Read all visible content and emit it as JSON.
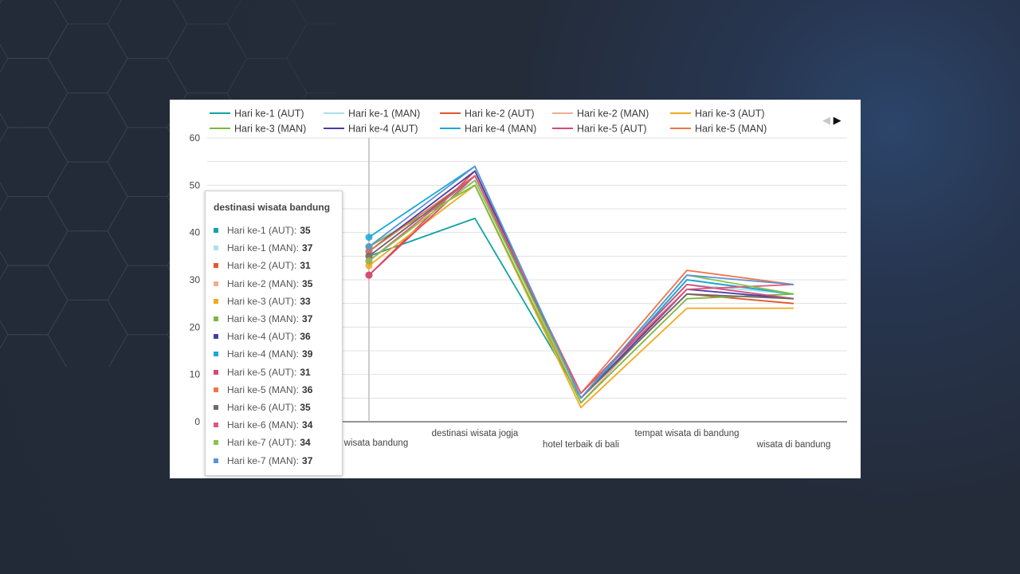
{
  "chart_data": {
    "type": "line",
    "categories": [
      "destinasi wisata bandung",
      "destinasi wisata jogja",
      "hotel terbaik di bali",
      "tempat wisata di bandung",
      "wisata di bandung"
    ],
    "category_labels_shown": [
      "asi wisata bandung",
      "destinasi wisata jogja",
      "hotel terbaik di bali",
      "tempat wisata di bandung",
      "wisata di bandung"
    ],
    "ylim": [
      0,
      60
    ],
    "yticks": [
      "60",
      "50",
      "40",
      "30",
      "20",
      "10",
      "0"
    ],
    "series": [
      {
        "name": "Hari ke-1 (AUT)",
        "color": "#12a3a3",
        "values": [
          35,
          43,
          5,
          30,
          27
        ]
      },
      {
        "name": "Hari ke-1 (MAN)",
        "color": "#a9e1ea",
        "values": [
          37,
          51,
          5,
          29,
          27
        ]
      },
      {
        "name": "Hari ke-2 (AUT)",
        "color": "#e4552c",
        "values": [
          31,
          53,
          5,
          27,
          25
        ]
      },
      {
        "name": "Hari ke-2 (MAN)",
        "color": "#f0ad93",
        "values": [
          35,
          52,
          4,
          28,
          26
        ]
      },
      {
        "name": "Hari ke-3 (AUT)",
        "color": "#f1a91b",
        "values": [
          33,
          50,
          3,
          24,
          24
        ]
      },
      {
        "name": "Hari ke-3 (MAN)",
        "color": "#7cb642",
        "values": [
          37,
          50,
          4,
          26,
          27
        ]
      },
      {
        "name": "Hari ke-4 (AUT)",
        "color": "#473ea6",
        "values": [
          36,
          53,
          5,
          28,
          26
        ]
      },
      {
        "name": "Hari ke-4 (MAN)",
        "color": "#18a9d6",
        "values": [
          39,
          54,
          5,
          30,
          27
        ]
      },
      {
        "name": "Hari ke-5 (AUT)",
        "color": "#d6487a",
        "values": [
          31,
          52,
          6,
          29,
          26
        ]
      },
      {
        "name": "Hari ke-5 (MAN)",
        "color": "#ef7649",
        "values": [
          36,
          52,
          6,
          32,
          29
        ]
      },
      {
        "name": "Hari ke-6 (AUT)",
        "color": "#6b6b6b",
        "values": [
          35,
          52,
          5,
          27,
          26
        ]
      },
      {
        "name": "Hari ke-6 (MAN)",
        "color": "#e0587a",
        "values": [
          34,
          52,
          6,
          28,
          29
        ]
      },
      {
        "name": "Hari ke-7 (AUT)",
        "color": "#8bc24a",
        "values": [
          34,
          51,
          5,
          31,
          27
        ]
      },
      {
        "name": "Hari ke-7 (MAN)",
        "color": "#5b93d6",
        "values": [
          37,
          54,
          5,
          31,
          29
        ]
      }
    ],
    "legend_visible_count": 10,
    "tooltip": {
      "title": "destinasi wisata bandung",
      "rows": [
        {
          "label": "Hari ke-1 (AUT):",
          "value": "35"
        },
        {
          "label": "Hari ke-1 (MAN):",
          "value": "37"
        },
        {
          "label": "Hari ke-2 (AUT):",
          "value": "31"
        },
        {
          "label": "Hari ke-2 (MAN):",
          "value": "35"
        },
        {
          "label": "Hari ke-3 (AUT):",
          "value": "33"
        },
        {
          "label": "Hari ke-3 (MAN):",
          "value": "37"
        },
        {
          "label": "Hari ke-4 (AUT):",
          "value": "36"
        },
        {
          "label": "Hari ke-4 (MAN):",
          "value": "39"
        },
        {
          "label": "Hari ke-5 (AUT):",
          "value": "31"
        },
        {
          "label": "Hari ke-5 (MAN):",
          "value": "36"
        },
        {
          "label": "Hari ke-6 (AUT):",
          "value": "35"
        },
        {
          "label": "Hari ke-6 (MAN):",
          "value": "34"
        },
        {
          "label": "Hari ke-7 (AUT):",
          "value": "34"
        },
        {
          "label": "Hari ke-7 (MAN):",
          "value": "37"
        }
      ]
    },
    "pager": {
      "prev_icon": "triangle-left-icon",
      "next_icon": "triangle-right-icon",
      "prev": "◀",
      "next": "▶"
    }
  }
}
